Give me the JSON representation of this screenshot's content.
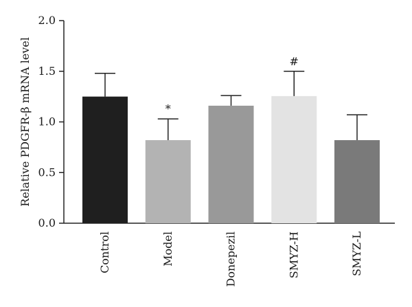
{
  "chart_data": {
    "type": "bar",
    "title": "",
    "ylabel": "Relative PDGFR-β mRNA level",
    "xlabel": "",
    "ylim": [
      0,
      2.0
    ],
    "yticks": [
      0.0,
      0.5,
      1.0,
      1.5,
      2.0
    ],
    "ytick_labels": [
      "0.0",
      "0.5",
      "1.0",
      "1.5",
      "2.0"
    ],
    "grid": false,
    "categories": [
      "Control",
      "Model",
      "Donepezil",
      "SMYZ-H",
      "SMYZ-L"
    ],
    "values": [
      1.25,
      0.82,
      1.16,
      1.255,
      0.82
    ],
    "errors": [
      0.23,
      0.21,
      0.1,
      0.245,
      0.25
    ],
    "colors": [
      "#1f1f1f",
      "#b3b3b3",
      "#999999",
      "#e3e3e3",
      "#7a7a7a"
    ],
    "annotations": [
      "",
      "*",
      "",
      "#",
      ""
    ]
  }
}
